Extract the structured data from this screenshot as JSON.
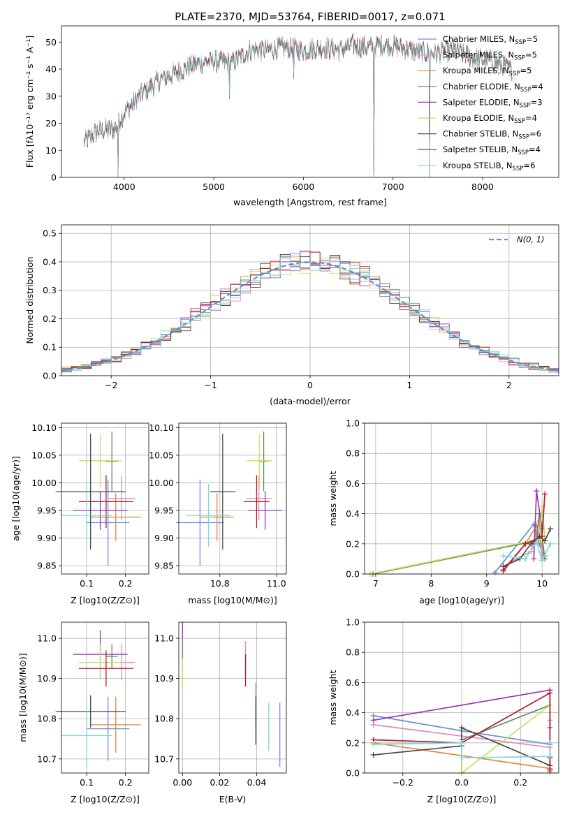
{
  "figure_title": "PLATE=2370, MJD=53764, FIBERID=0017, z=0.071",
  "colors": {
    "Chabrier MILES": "#6a8fd8",
    "Salpeter MILES": "#e58ab6",
    "Kroupa MILES": "#dd8a3b",
    "Chabrier ELODIE": "#5b8d5b",
    "Salpeter ELODIE": "#9b36b6",
    "Kroupa ELODIE": "#c8df5f",
    "Chabrier STELIB": "#4a4a4a",
    "Salpeter STELIB": "#b31b2b",
    "Kroupa STELIB": "#7dd7e0",
    "gaussian": "#5b8fd9"
  },
  "legend_spectrum": [
    {
      "name": "Chabrier MILES",
      "nssp": "5"
    },
    {
      "name": "Salpeter MILES",
      "nssp": "5"
    },
    {
      "name": "Kroupa MILES",
      "nssp": "5"
    },
    {
      "name": "Chabrier ELODIE",
      "nssp": "4"
    },
    {
      "name": "Salpeter ELODIE",
      "nssp": "3"
    },
    {
      "name": "Kroupa ELODIE",
      "nssp": "4"
    },
    {
      "name": "Chabrier STELIB",
      "nssp": "6"
    },
    {
      "name": "Salpeter STELIB",
      "nssp": "4"
    },
    {
      "name": "Kroupa STELIB",
      "nssp": "6"
    }
  ],
  "legend_gauss": "N(0, 1)",
  "chart_data": [
    {
      "id": "spectrum",
      "type": "line",
      "xlabel": "wavelength [Angstrom, rest frame]",
      "ylabel": "Flux [fλ10⁻¹⁷ erg cm⁻² s⁻¹ A⁻¹]",
      "xlim": [
        3300,
        8850
      ],
      "ylim": [
        0,
        56
      ],
      "xticks": [
        4000,
        5000,
        6000,
        7000,
        8000
      ],
      "yticks": [
        0,
        10,
        20,
        30,
        40,
        50
      ],
      "grid": false,
      "continuum": {
        "x": [
          3550,
          3700,
          3900,
          4000,
          4200,
          4400,
          4600,
          4800,
          5000,
          5200,
          5400,
          5600,
          5800,
          6000,
          6200,
          6400,
          6560,
          6700,
          6900,
          7100,
          7300,
          7500,
          7700,
          7900,
          8100,
          8300
        ],
        "y": [
          13,
          17,
          18,
          24,
          31,
          36,
          39,
          42,
          43,
          42,
          47,
          47,
          48,
          47,
          48,
          47,
          49,
          48,
          49,
          48,
          46,
          46,
          47,
          44,
          43,
          40
        ]
      },
      "dips": [
        {
          "x": 3934,
          "y": 0
        },
        {
          "x": 5175,
          "y": 30
        },
        {
          "x": 5890,
          "y": 37
        },
        {
          "x": 6790,
          "y": 0
        },
        {
          "x": 7410,
          "y": 0
        }
      ]
    },
    {
      "id": "residuals",
      "type": "step-histogram",
      "xlabel": "(data-model)/error",
      "ylabel": "Normed distribution",
      "xlim": [
        -2.5,
        2.5
      ],
      "ylim": [
        0,
        0.53
      ],
      "xticks": [
        -2,
        -1,
        0,
        1,
        2
      ],
      "yticks": [
        0,
        0.1,
        0.2,
        0.3,
        0.4,
        0.5
      ],
      "grid": true,
      "bin_width": 0.1,
      "gaussian": {
        "mean": 0,
        "sigma": 1
      }
    },
    {
      "id": "age_vs_Z",
      "type": "errorbar",
      "xlabel": "Z [log10(Z/Z⊙)]",
      "ylabel": "age  [log10(age/yr)]",
      "xlim": [
        0.035,
        0.26
      ],
      "ylim": [
        9.835,
        10.108
      ],
      "xticks": [
        0.1,
        0.2
      ],
      "yticks": [
        9.85,
        9.9,
        9.95,
        10.0,
        10.05,
        10.1
      ],
      "points": [
        {
          "s": "Chabrier MILES",
          "x": 0.155,
          "xe": 0.055,
          "y": 9.928,
          "ye": 0.078
        },
        {
          "s": "Salpeter MILES",
          "x": 0.19,
          "xe": 0.035,
          "y": 9.972,
          "ye": 0.04
        },
        {
          "s": "Kroupa MILES",
          "x": 0.175,
          "xe": 0.065,
          "y": 9.938,
          "ye": 0.043
        },
        {
          "s": "Chabrier ELODIE",
          "x": 0.165,
          "xe": 0.015,
          "y": 10.039,
          "ye": 0.054
        },
        {
          "s": "Salpeter ELODIE",
          "x": 0.135,
          "xe": 0.07,
          "y": 9.95,
          "ye": 0.035
        },
        {
          "s": "Kroupa ELODIE",
          "x": 0.135,
          "xe": 0.055,
          "y": 10.04,
          "ye": 0.048
        },
        {
          "s": "Chabrier STELIB",
          "x": 0.11,
          "xe": 0.09,
          "y": 9.984,
          "ye": 0.105
        },
        {
          "s": "Salpeter STELIB",
          "x": 0.15,
          "xe": 0.07,
          "y": 9.966,
          "ye": 0.048
        },
        {
          "s": "Kroupa STELIB",
          "x": 0.1,
          "xe": 0.065,
          "y": 9.941,
          "ye": 0.057
        }
      ]
    },
    {
      "id": "age_vs_mass",
      "type": "errorbar",
      "xlabel": "mass [log10(M/M⊙)]",
      "ylabel": "",
      "xlim": [
        10.655,
        11.035
      ],
      "ylim": [
        9.835,
        10.108
      ],
      "xticks": [
        10.8,
        11.0
      ],
      "yticks": [
        9.85,
        9.9,
        9.95,
        10.0,
        10.05,
        10.1
      ],
      "points": [
        {
          "s": "Chabrier MILES",
          "x": 10.73,
          "xe": 0.085,
          "y": 9.928,
          "ye": 0.078
        },
        {
          "s": "Salpeter MILES",
          "x": 10.938,
          "xe": 0.045,
          "y": 9.972,
          "ye": 0.04
        },
        {
          "s": "Kroupa MILES",
          "x": 10.79,
          "xe": 0.06,
          "y": 9.938,
          "ye": 0.043
        },
        {
          "s": "Chabrier ELODIE",
          "x": 10.955,
          "xe": 0.015,
          "y": 10.039,
          "ye": 0.054
        },
        {
          "s": "Salpeter ELODIE",
          "x": 10.96,
          "xe": 0.06,
          "y": 9.95,
          "ye": 0.035
        },
        {
          "s": "Kroupa ELODIE",
          "x": 10.94,
          "xe": 0.045,
          "y": 10.04,
          "ye": 0.048
        },
        {
          "s": "Chabrier STELIB",
          "x": 10.81,
          "xe": 0.045,
          "y": 9.984,
          "ye": 0.105
        },
        {
          "s": "Salpeter STELIB",
          "x": 10.93,
          "xe": 0.045,
          "y": 9.966,
          "ye": 0.048
        },
        {
          "s": "Kroupa STELIB",
          "x": 10.76,
          "xe": 0.08,
          "y": 9.941,
          "ye": 0.057
        }
      ]
    },
    {
      "id": "mass_vs_Z",
      "type": "errorbar",
      "xlabel": "Z [log10(Z/Z⊙)]",
      "ylabel": "mass [log10(M/M⊙)]",
      "xlim": [
        0.035,
        0.26
      ],
      "ylim": [
        10.665,
        11.04
      ],
      "xticks": [
        0.1,
        0.2
      ],
      "yticks": [
        10.7,
        10.8,
        10.9,
        11.0
      ],
      "points": [
        {
          "s": "Chabrier MILES",
          "x": 0.155,
          "xe": 0.055,
          "y": 10.775,
          "ye": 0.08
        },
        {
          "s": "Salpeter MILES",
          "x": 0.19,
          "xe": 0.035,
          "y": 10.94,
          "ye": 0.045
        },
        {
          "s": "Kroupa MILES",
          "x": 0.175,
          "xe": 0.065,
          "y": 10.785,
          "ye": 0.07
        },
        {
          "s": "Chabrier ELODIE",
          "x": 0.165,
          "xe": 0.015,
          "y": 10.955,
          "ye": 0.03
        },
        {
          "s": "Salpeter ELODIE",
          "x": 0.135,
          "xe": 0.07,
          "y": 10.96,
          "ye": 0.06
        },
        {
          "s": "Kroupa ELODIE",
          "x": 0.135,
          "xe": 0.055,
          "y": 10.94,
          "ye": 0.045
        },
        {
          "s": "Chabrier STELIB",
          "x": 0.11,
          "xe": 0.09,
          "y": 10.818,
          "ye": 0.04
        },
        {
          "s": "Salpeter STELIB",
          "x": 0.15,
          "xe": 0.07,
          "y": 10.925,
          "ye": 0.045
        },
        {
          "s": "Kroupa STELIB",
          "x": 0.1,
          "xe": 0.065,
          "y": 10.758,
          "ye": 0.08
        }
      ]
    },
    {
      "id": "mass_vs_EBV",
      "type": "errorbar",
      "xlabel": "E(B-V)",
      "ylabel": "",
      "xlim": [
        -0.002,
        0.056
      ],
      "ylim": [
        10.665,
        11.04
      ],
      "xticks": [
        0.0,
        0.02,
        0.04
      ],
      "yticks": [
        10.7,
        10.8,
        10.9,
        11.0
      ],
      "points": [
        {
          "s": "Chabrier MILES",
          "x": 0.0525,
          "xe": 0,
          "y": 10.76,
          "ye": 0.08
        },
        {
          "s": "Salpeter MILES",
          "x": 0.034,
          "xe": 0,
          "y": 10.958,
          "ye": 0.035
        },
        {
          "s": "Kroupa MILES",
          "x": 0.0395,
          "xe": 0,
          "y": 10.84,
          "ye": 0.05
        },
        {
          "s": "Chabrier ELODIE",
          "x": 0.0,
          "xe": 0,
          "y": 10.96,
          "ye": 0.04
        },
        {
          "s": "Salpeter ELODIE",
          "x": 0.0,
          "xe": 0,
          "y": 11.02,
          "ye": 0.02
        },
        {
          "s": "Kroupa ELODIE",
          "x": 0.0,
          "xe": 0,
          "y": 10.91,
          "ye": 0.04
        },
        {
          "s": "Chabrier STELIB",
          "x": 0.0395,
          "xe": 0,
          "y": 10.795,
          "ye": 0.06
        },
        {
          "s": "Salpeter STELIB",
          "x": 0.034,
          "xe": 0,
          "y": 10.92,
          "ye": 0.04
        },
        {
          "s": "Kroupa STELIB",
          "x": 0.0465,
          "xe": 0,
          "y": 10.78,
          "ye": 0.06
        }
      ]
    },
    {
      "id": "weight_vs_age",
      "type": "line-markers",
      "xlabel": "age  [log10(age/yr)]",
      "ylabel": "mass weight",
      "xlim": [
        6.8,
        10.3
      ],
      "ylim": [
        0,
        1
      ],
      "xticks": [
        7,
        8,
        9,
        10
      ],
      "yticks": [
        0,
        0.2,
        0.4,
        0.6,
        0.8,
        1.0
      ],
      "series": [
        {
          "s": "Chabrier MILES",
          "x": [
            9.15,
            9.85,
            9.95,
            10.05
          ],
          "y": [
            0.01,
            0.33,
            0.2,
            0.1
          ]
        },
        {
          "s": "Salpeter MILES",
          "x": [
            9.3,
            9.8,
            9.95,
            10.0
          ],
          "y": [
            0.05,
            0.15,
            0.35,
            0.1
          ]
        },
        {
          "s": "Kroupa MILES",
          "x": [
            9.3,
            9.7,
            9.9,
            10.05
          ],
          "y": [
            0.03,
            0.2,
            0.32,
            0.12
          ]
        },
        {
          "s": "Chabrier ELODIE",
          "x": [
            6.95,
            9.9,
            9.95,
            10.05
          ],
          "y": [
            0.0,
            0.22,
            0.4,
            0.1
          ]
        },
        {
          "s": "Salpeter ELODIE",
          "x": [
            9.85,
            9.9,
            10.0
          ],
          "y": [
            0.1,
            0.55,
            0.3
          ]
        },
        {
          "s": "Kroupa ELODIE",
          "x": [
            6.9,
            9.95,
            10.0,
            10.05
          ],
          "y": [
            0.0,
            0.23,
            0.45,
            0.25
          ]
        },
        {
          "s": "Chabrier STELIB",
          "x": [
            9.3,
            9.6,
            9.8,
            9.95,
            10.05,
            10.15
          ],
          "y": [
            0.05,
            0.1,
            0.2,
            0.25,
            0.22,
            0.3
          ]
        },
        {
          "s": "Salpeter STELIB",
          "x": [
            9.3,
            9.7,
            10.0,
            10.05
          ],
          "y": [
            0.02,
            0.2,
            0.25,
            0.53
          ]
        },
        {
          "s": "Kroupa STELIB",
          "x": [
            9.3,
            9.5,
            9.7,
            9.9,
            10.0,
            10.15
          ],
          "y": [
            0.12,
            0.11,
            0.1,
            0.21,
            0.09,
            0.2
          ]
        }
      ]
    },
    {
      "id": "weight_vs_Z",
      "type": "line-markers",
      "xlabel": "Z [log10(Z/Z⊙)]",
      "ylabel": "mass weight",
      "xlim": [
        -0.33,
        0.33
      ],
      "ylim": [
        0,
        1
      ],
      "xticks": [
        -0.2,
        0.0,
        0.2
      ],
      "yticks": [
        0,
        0.2,
        0.4,
        0.6,
        0.8,
        1.0
      ],
      "series": [
        {
          "s": "Chabrier MILES",
          "x": [
            -0.3,
            0.0,
            0.3,
            0.3
          ],
          "y": [
            0.38,
            0.28,
            0.19,
            0.01
          ]
        },
        {
          "s": "Salpeter MILES",
          "x": [
            -0.3,
            0.3,
            0.3
          ],
          "y": [
            0.32,
            0.17,
            0.35
          ]
        },
        {
          "s": "Kroupa MILES",
          "x": [
            -0.3,
            0.3,
            0.3
          ],
          "y": [
            0.2,
            0.03,
            0.1
          ]
        },
        {
          "s": "Chabrier ELODIE",
          "x": [
            0.0,
            0.0,
            0.3
          ],
          "y": [
            0.0,
            0.22,
            0.45
          ]
        },
        {
          "s": "Salpeter ELODIE",
          "x": [
            -0.3,
            0.3,
            0.3
          ],
          "y": [
            0.35,
            0.55,
            0.3
          ]
        },
        {
          "s": "Kroupa ELODIE",
          "x": [
            0.0,
            0.0,
            0.3
          ],
          "y": [
            0.3,
            0.0,
            0.45
          ]
        },
        {
          "s": "Chabrier STELIB",
          "x": [
            -0.3,
            0.0,
            0.0,
            0.3,
            0.3
          ],
          "y": [
            0.12,
            0.18,
            0.3,
            0.05,
            0.1
          ]
        },
        {
          "s": "Salpeter STELIB",
          "x": [
            -0.3,
            0.0,
            0.3,
            0.3
          ],
          "y": [
            0.22,
            0.2,
            0.53,
            0.02
          ]
        },
        {
          "s": "Kroupa STELIB",
          "x": [
            -0.3,
            0.0,
            0.0,
            0.3,
            0.3
          ],
          "y": [
            0.19,
            0.2,
            0.1,
            0.11,
            0.2
          ]
        }
      ]
    }
  ]
}
